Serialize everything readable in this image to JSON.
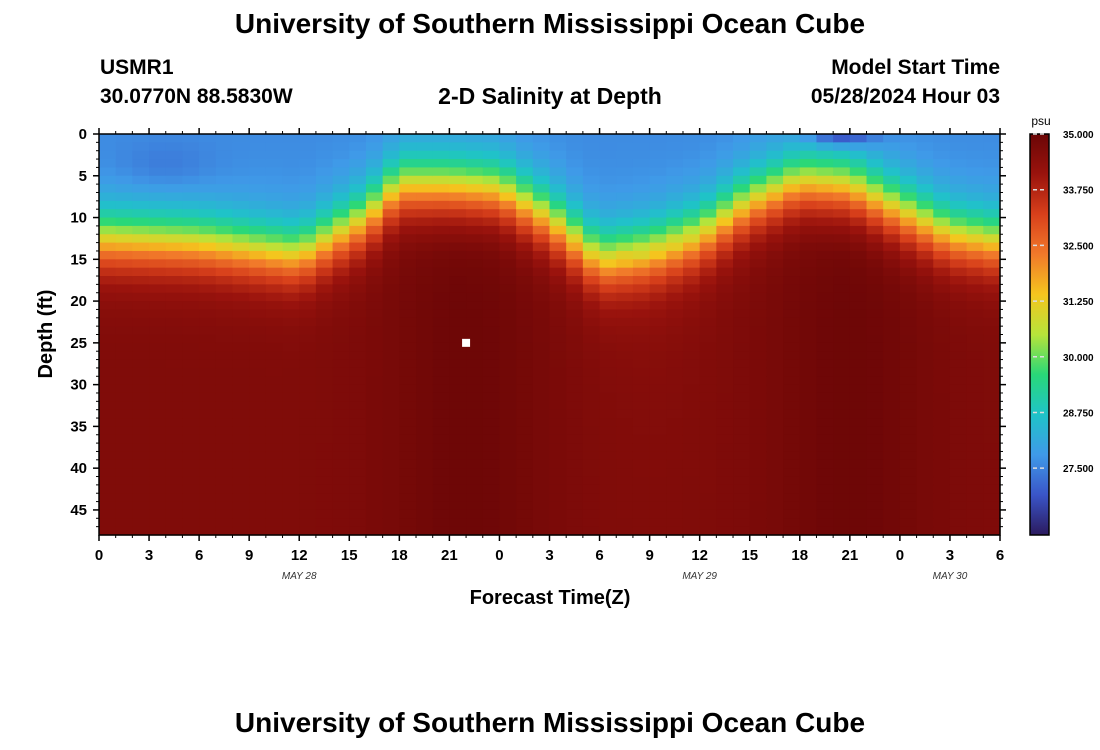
{
  "header": {
    "title": "University of Southern Mississippi Ocean Cube",
    "station": "USMR1",
    "coordinates": "30.0770N  88.5830W",
    "subtitle": "2-D Salinity at Depth",
    "start_label": "Model Start Time",
    "start_value": "05/28/2024 Hour 03"
  },
  "footer": {
    "title": "University of Southern Mississippi Ocean Cube"
  },
  "chart_data": {
    "type": "heatmap",
    "title": "2-D Salinity at Depth",
    "xlabel": "Forecast Time(Z)",
    "ylabel": "Depth (ft)",
    "x_range_hours": [
      0,
      54
    ],
    "y_range_ft": [
      0,
      48
    ],
    "x_ticks": [
      "0",
      "3",
      "6",
      "9",
      "12",
      "15",
      "18",
      "21",
      "0",
      "3",
      "6",
      "9",
      "12",
      "15",
      "18",
      "21",
      "0",
      "3",
      "6"
    ],
    "y_ticks": [
      "0",
      "5",
      "10",
      "15",
      "20",
      "25",
      "30",
      "35",
      "40",
      "45"
    ],
    "date_labels": [
      {
        "text": "MAY 28",
        "hour": 12
      },
      {
        "text": "MAY 29",
        "hour": 36
      },
      {
        "text": "MAY 30",
        "hour": 51
      }
    ],
    "colorbar": {
      "unit": "psu",
      "min": 26.0,
      "max": 35.0,
      "ticks": [
        "35.000",
        "33.750",
        "32.500",
        "31.250",
        "30.000",
        "28.750",
        "27.500"
      ],
      "tick_values": [
        35.0,
        33.75,
        32.5,
        31.25,
        30.0,
        28.75,
        27.5
      ],
      "colors": [
        "#2b1a5e",
        "#3a55c8",
        "#3f9ae8",
        "#1fc3c8",
        "#29d878",
        "#b7e43a",
        "#f5c51e",
        "#f1792a",
        "#d8401b",
        "#9a130d",
        "#6b0606"
      ]
    },
    "surface_salinity_psu": 27.6,
    "deep_salinity_psu": 34.6,
    "halocline_depth_ft_by_hour": [
      [
        0,
        12.5
      ],
      [
        6,
        13
      ],
      [
        12,
        14.5
      ],
      [
        16,
        10
      ],
      [
        18,
        6
      ],
      [
        21,
        6
      ],
      [
        24,
        6.5
      ],
      [
        27,
        10
      ],
      [
        30,
        15
      ],
      [
        33,
        14
      ],
      [
        36,
        12
      ],
      [
        39,
        8
      ],
      [
        42,
        5.5
      ],
      [
        45,
        6
      ],
      [
        48,
        9
      ],
      [
        51,
        12
      ],
      [
        54,
        13
      ]
    ],
    "marker": {
      "hour": 22,
      "depth_ft": 25
    }
  }
}
